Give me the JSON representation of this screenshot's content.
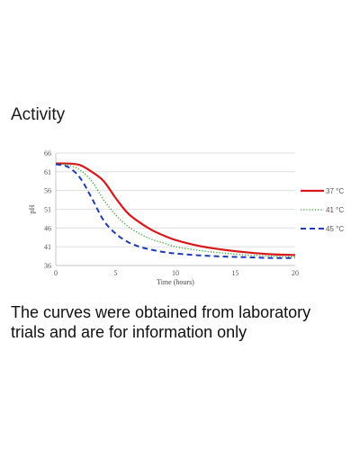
{
  "heading": "Activity",
  "caption": {
    "line1": "The curves were obtained from laboratory",
    "line2": "trials and are for information only"
  },
  "chart_data": {
    "type": "line",
    "xlabel": "Time (hours)",
    "ylabel": "pH",
    "xlim": [
      0,
      20
    ],
    "ylim": [
      36,
      66
    ],
    "x_ticks": [
      0,
      5,
      10,
      15,
      20
    ],
    "y_ticks": [
      36,
      41,
      46,
      51,
      56,
      61,
      66
    ],
    "grid": true,
    "legend_position": "right",
    "series": [
      {
        "name": "37 °C",
        "color": "#d7191c",
        "style": "solid",
        "x": [
          0,
          1,
          2,
          3,
          4,
          5,
          6,
          7,
          8,
          9,
          10,
          12,
          14,
          16,
          18,
          20
        ],
        "y": [
          63.2,
          63.2,
          62.8,
          61.0,
          58.5,
          54.0,
          50.0,
          47.5,
          45.5,
          44.0,
          42.8,
          41.2,
          40.2,
          39.5,
          39.0,
          38.8
        ]
      },
      {
        "name": "41 °C",
        "color": "#2ca02c",
        "style": "dotted",
        "x": [
          0,
          1,
          2,
          3,
          4,
          5,
          6,
          7,
          8,
          9,
          10,
          12,
          14,
          16,
          18,
          20
        ],
        "y": [
          63.0,
          62.8,
          61.5,
          58.5,
          53.5,
          49.5,
          46.5,
          44.5,
          43.0,
          42.0,
          41.0,
          40.0,
          39.3,
          38.8,
          38.5,
          38.3
        ]
      },
      {
        "name": "45 °C",
        "color": "#1f3cb4",
        "style": "dashed",
        "x": [
          0,
          1,
          2,
          3,
          4,
          5,
          6,
          7,
          8,
          9,
          10,
          12,
          14,
          16,
          18,
          20
        ],
        "y": [
          63.0,
          62.3,
          59.5,
          54.0,
          48.0,
          44.5,
          42.3,
          41.0,
          40.2,
          39.6,
          39.2,
          38.7,
          38.4,
          38.2,
          38.0,
          38.0
        ]
      }
    ]
  }
}
